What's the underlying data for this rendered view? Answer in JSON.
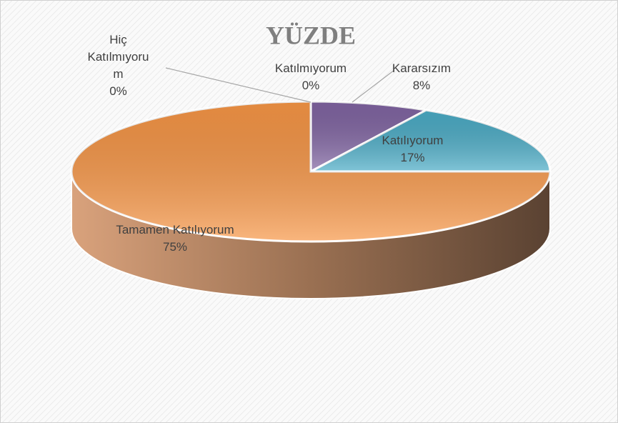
{
  "chart_data": {
    "type": "pie",
    "title": "YÜZDE",
    "categories": [
      "Hiç Katılmıyorum",
      "Katılmıyorum",
      "Kararsızım",
      "Katılıyorum",
      "Tamamen Katılıyorum"
    ],
    "values": [
      0,
      0,
      8,
      17,
      75
    ],
    "value_labels": [
      "0%",
      "0%",
      "8%",
      "17%",
      "75%"
    ],
    "colors": [
      "#c0504d",
      "#9bbb59",
      "#8064a2",
      "#4bacc6",
      "#f79646"
    ]
  }
}
